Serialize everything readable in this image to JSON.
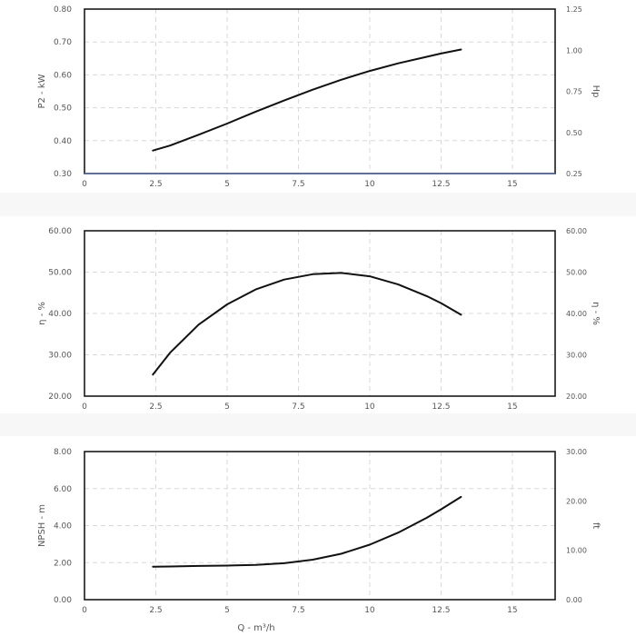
{
  "chart_data": [
    {
      "type": "line",
      "ylabel": "P2 - kW",
      "ylabel_right": "Hp",
      "xlim": [
        0,
        16.5
      ],
      "ylim": [
        0.3,
        0.8
      ],
      "xticks": [
        "0",
        "2.5",
        "5",
        "7.5",
        "10",
        "12.5",
        "15"
      ],
      "yticks": [
        "0.30",
        "0.40",
        "0.50",
        "0.60",
        "0.70",
        "0.80"
      ],
      "yticks_right": [
        "0.25",
        "0.50",
        "0.75",
        "1.00",
        "1.25"
      ],
      "grid": true,
      "series": [
        {
          "x": [
            2.4,
            3.0,
            4.0,
            5.0,
            6.0,
            7.0,
            8.0,
            9.0,
            10.0,
            11.0,
            12.0,
            12.5,
            13.2
          ],
          "y": [
            0.37,
            0.385,
            0.418,
            0.452,
            0.488,
            0.522,
            0.555,
            0.585,
            0.612,
            0.635,
            0.655,
            0.665,
            0.677
          ]
        }
      ]
    },
    {
      "type": "line",
      "ylabel": "η - %",
      "ylabel_right": "η - %",
      "xlim": [
        0,
        16.5
      ],
      "ylim": [
        20,
        60
      ],
      "xticks": [
        "0",
        "2.5",
        "5",
        "7.5",
        "10",
        "12.5",
        "15"
      ],
      "yticks": [
        "20.00",
        "30.00",
        "40.00",
        "50.00",
        "60.00"
      ],
      "yticks_right": [
        "20.00",
        "30.00",
        "40.00",
        "50.00",
        "60.00"
      ],
      "grid": true,
      "series": [
        {
          "x": [
            2.4,
            3.0,
            4.0,
            5.0,
            6.0,
            7.0,
            8.0,
            9.0,
            10.0,
            11.0,
            12.0,
            12.5,
            13.2
          ],
          "y": [
            25.2,
            30.5,
            37.3,
            42.2,
            45.8,
            48.2,
            49.5,
            49.8,
            49.0,
            47.0,
            44.2,
            42.5,
            39.7
          ]
        }
      ]
    },
    {
      "type": "line",
      "xlabel": "Q - m³/h",
      "ylabel": "NPSH - m",
      "ylabel_right": "ft",
      "xlim": [
        0,
        16.5
      ],
      "ylim": [
        0,
        8
      ],
      "xticks": [
        "0",
        "2.5",
        "5",
        "7.5",
        "10",
        "12.5",
        "15"
      ],
      "yticks": [
        "0.00",
        "2.00",
        "4.00",
        "6.00",
        "8.00"
      ],
      "yticks_right": [
        "0.00",
        "10.00",
        "20.00",
        "30.00"
      ],
      "grid": true,
      "series": [
        {
          "x": [
            2.4,
            3.0,
            4.0,
            5.0,
            6.0,
            7.0,
            8.0,
            9.0,
            10.0,
            11.0,
            12.0,
            12.5,
            13.2
          ],
          "y": [
            1.78,
            1.79,
            1.82,
            1.84,
            1.88,
            1.97,
            2.16,
            2.48,
            2.97,
            3.62,
            4.42,
            4.88,
            5.55
          ]
        }
      ]
    }
  ]
}
